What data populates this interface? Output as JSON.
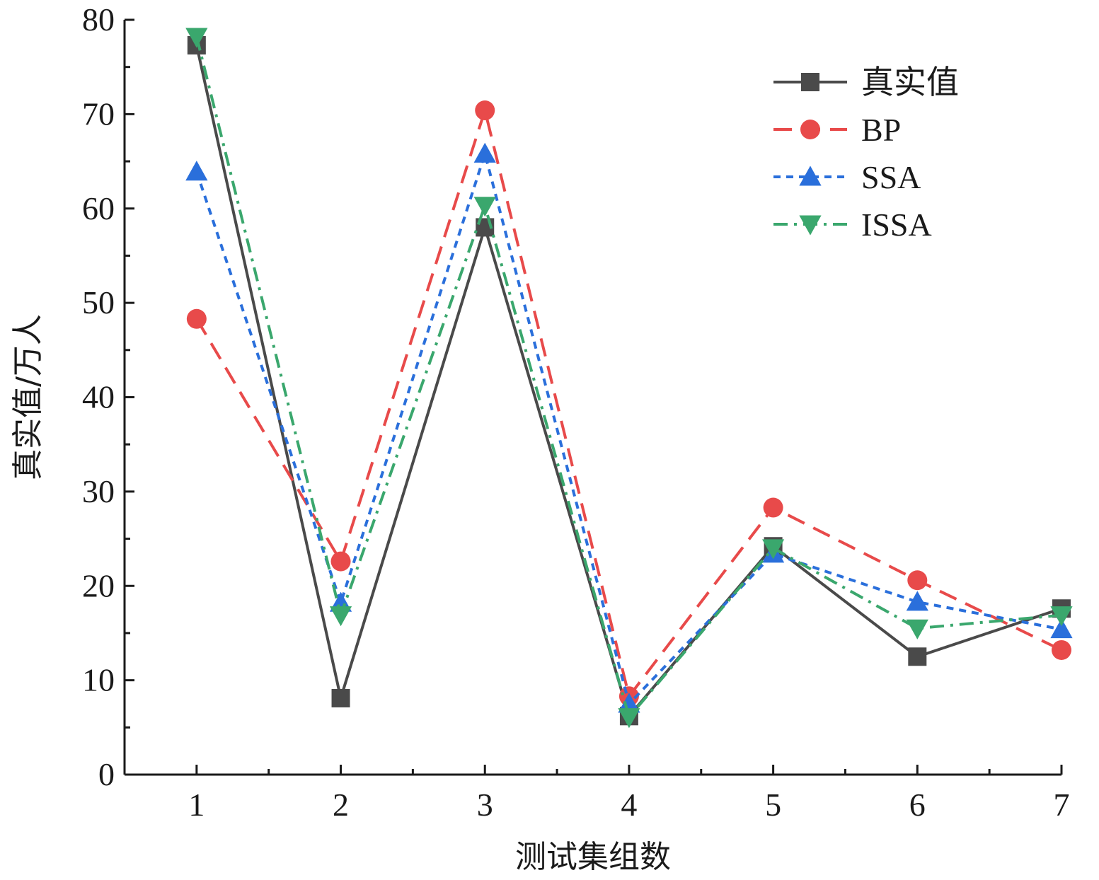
{
  "chart_data": {
    "type": "line",
    "xlabel": "测试集组数",
    "ylabel": "真实值/万人",
    "x": [
      1,
      2,
      3,
      4,
      5,
      6,
      7
    ],
    "xlim": [
      0.5,
      7
    ],
    "ylim": [
      0,
      80
    ],
    "yticks": [
      0,
      10,
      20,
      30,
      40,
      50,
      60,
      70,
      80
    ],
    "grid": false,
    "legend_position": "top-right",
    "series": [
      {
        "name": "真实值",
        "values": [
          77.3,
          8.1,
          58.0,
          6.2,
          24.2,
          12.5,
          17.6
        ],
        "color": "#4a4a4a",
        "marker": "square",
        "dash": "solid"
      },
      {
        "name": "BP",
        "values": [
          48.3,
          22.6,
          70.4,
          8.3,
          28.3,
          20.6,
          13.2
        ],
        "color": "#e84a4a",
        "marker": "circle",
        "dash": "dashed"
      },
      {
        "name": "SSA",
        "values": [
          63.9,
          18.2,
          65.8,
          7.5,
          23.4,
          18.3,
          15.4
        ],
        "color": "#2a6fdb",
        "marker": "triangle-up",
        "dash": "dotted"
      },
      {
        "name": "ISSA",
        "values": [
          78.2,
          16.9,
          60.3,
          6.1,
          24.0,
          15.5,
          16.9
        ],
        "color": "#3aa76d",
        "marker": "triangle-down",
        "dash": "dash-dot"
      }
    ]
  }
}
